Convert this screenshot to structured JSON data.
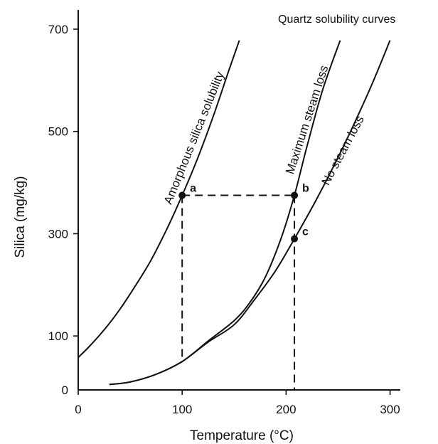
{
  "chart_data": {
    "type": "line",
    "title": "Quartz solubility curves",
    "xlabel": "Temperature  (°C)",
    "ylabel": "Silica  (mg/kg)",
    "xlim": [
      0,
      310
    ],
    "ylim": [
      0,
      700
    ],
    "x_ticks": [
      0,
      100,
      200,
      300
    ],
    "y_ticks": [
      0,
      100,
      300,
      500,
      700
    ],
    "grid": false,
    "series": [
      {
        "name": "Amorphous silica solubility",
        "x": [
          0,
          10,
          25,
          40,
          55,
          70,
          85,
          100,
          115,
          130,
          145,
          155
        ],
        "y": [
          58,
          78,
          112,
          152,
          198,
          248,
          308,
          375,
          448,
          530,
          620,
          678
        ]
      },
      {
        "name": "Maximum steam loss",
        "x": [
          30,
          50,
          75,
          100,
          125,
          150,
          165,
          180,
          195,
          208,
          220,
          235,
          252
        ],
        "y": [
          5,
          10,
          25,
          50,
          90,
          130,
          165,
          215,
          290,
          375,
          470,
          580,
          678
        ]
      },
      {
        "name": "No steam loss",
        "x": [
          30,
          50,
          75,
          100,
          125,
          150,
          170,
          190,
          208,
          230,
          255,
          280,
          300
        ],
        "y": [
          5,
          10,
          25,
          50,
          88,
          122,
          172,
          228,
          290,
          370,
          470,
          580,
          678
        ]
      }
    ],
    "points": [
      {
        "label": "a",
        "x": 100,
        "y": 375
      },
      {
        "label": "b",
        "x": 208,
        "y": 375
      },
      {
        "label": "c",
        "x": 208,
        "y": 290
      }
    ],
    "dashed_lines": [
      {
        "from": [
          100,
          375
        ],
        "to": [
          208,
          375
        ]
      },
      {
        "from": [
          100,
          375
        ],
        "to": [
          100,
          50
        ]
      },
      {
        "from": [
          208,
          375
        ],
        "to": [
          208,
          0
        ]
      }
    ]
  }
}
